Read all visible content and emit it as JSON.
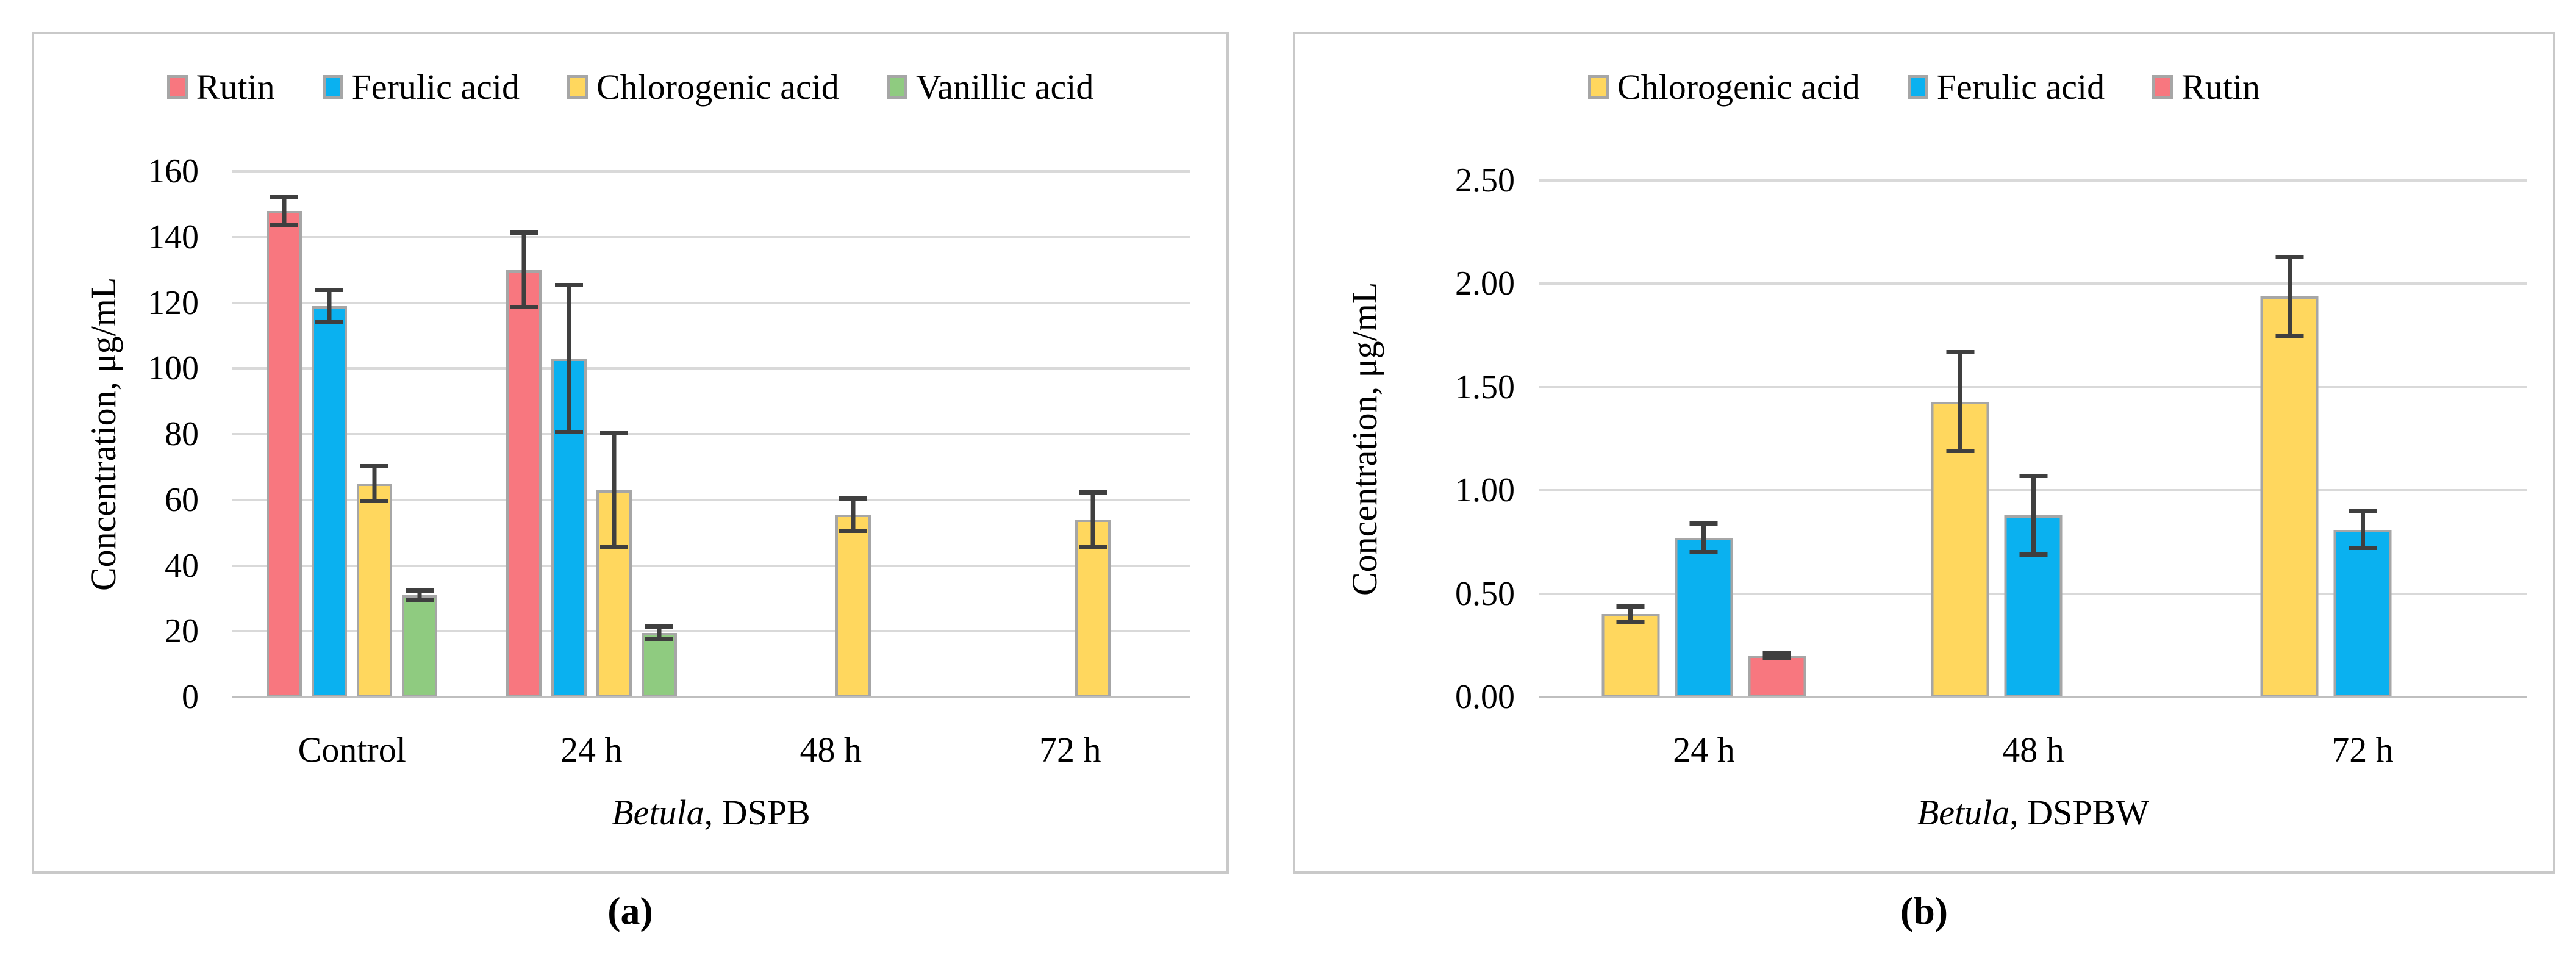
{
  "colors": {
    "frame": "#C9C9C9",
    "gridline": "#D9D9D9",
    "axis_line": "#BFBFBF",
    "bar_border": "#A6A6A6",
    "error_bar": "#3F3F3F",
    "series": {
      "Rutin": "#F8777F",
      "Ferulic acid": "#0AB1F0",
      "Chlorogenic acid": "#FFD75E",
      "Vanillic acid": "#8FCB80"
    }
  },
  "chart_data": [
    {
      "id": "a",
      "type": "bar",
      "caption": "(a)",
      "xlabel_italic": "Betula",
      "xlabel_rest": ", DSPB",
      "ylabel": "Concentration, μg/mL",
      "ylim": [
        0,
        160
      ],
      "ytick_step": 20,
      "ytick_decimals": 0,
      "grid": true,
      "legend_position": "top",
      "categories": [
        "Control",
        "24 h",
        "48 h",
        "72 h"
      ],
      "legend": [
        "Rutin",
        "Ferulic acid",
        "Chlorogenic acid",
        "Vanillic acid"
      ],
      "series": [
        {
          "name": "Rutin",
          "values": [
            148,
            130,
            0,
            0
          ],
          "errors": [
            5,
            12,
            0,
            0
          ]
        },
        {
          "name": "Ferulic acid",
          "values": [
            119,
            103,
            0,
            0
          ],
          "errors": [
            5.5,
            23,
            0,
            0
          ]
        },
        {
          "name": "Chlorogenic acid",
          "values": [
            65,
            63,
            55.5,
            54
          ],
          "errors": [
            6,
            18,
            5.5,
            9
          ]
        },
        {
          "name": "Vanillic acid",
          "values": [
            31,
            19.5,
            0,
            0
          ],
          "errors": [
            2,
            2.5,
            0,
            0
          ]
        }
      ]
    },
    {
      "id": "b",
      "type": "bar",
      "caption": "(b)",
      "xlabel_italic": "Betula",
      "xlabel_rest": ", DSPBW",
      "ylabel": "Concentration, μg/mL",
      "ylim": [
        0,
        2.5
      ],
      "ytick_step": 0.5,
      "ytick_decimals": 2,
      "grid": true,
      "legend_position": "top",
      "categories": [
        "24 h",
        "48 h",
        "72 h"
      ],
      "legend": [
        "Chlorogenic acid",
        "Ferulic acid",
        "Rutin"
      ],
      "series": [
        {
          "name": "Chlorogenic acid",
          "values": [
            0.4,
            1.43,
            1.94
          ],
          "errors": [
            0.05,
            0.25,
            0.2
          ]
        },
        {
          "name": "Ferulic acid",
          "values": [
            0.77,
            0.88,
            0.81
          ],
          "errors": [
            0.08,
            0.2,
            0.1
          ]
        },
        {
          "name": "Rutin",
          "values": [
            0.2,
            0,
            0
          ],
          "errors": [
            0.02,
            0,
            0
          ]
        }
      ]
    }
  ]
}
